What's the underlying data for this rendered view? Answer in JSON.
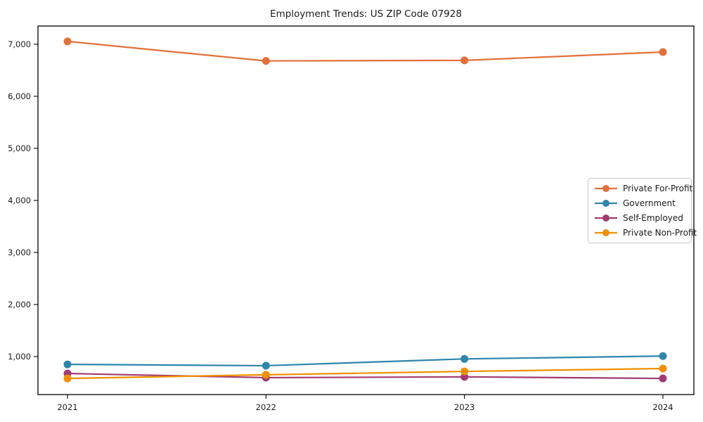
{
  "chart_data": {
    "type": "line",
    "title": "Employment Trends: US ZIP Code 07928",
    "categories": [
      "2021",
      "2022",
      "2023",
      "2024"
    ],
    "series": [
      {
        "name": "Private For-Profit",
        "color": "#E2703A",
        "values": [
          7055,
          6680,
          6690,
          6850
        ]
      },
      {
        "name": "Government",
        "color": "#2E86AB",
        "values": [
          850,
          825,
          955,
          1010
        ]
      },
      {
        "name": "Self-Employed",
        "color": "#A23B72",
        "values": [
          675,
          595,
          610,
          580
        ]
      },
      {
        "name": "Private Non-Profit",
        "color": "#F18F01",
        "values": [
          580,
          650,
          715,
          770
        ]
      }
    ],
    "xlabel": "",
    "ylabel": "",
    "ylim": [
      270,
      7350
    ],
    "yticks": [
      1000,
      2000,
      3000,
      4000,
      5000,
      6000,
      7000
    ],
    "yticklabels": [
      "1,000",
      "2,000",
      "3,000",
      "4,000",
      "5,000",
      "6,000",
      "7,000"
    ],
    "grid": false,
    "legend_position": "center-right",
    "marker": "circle",
    "axis_color": "#000000",
    "background": "#ffffff"
  }
}
